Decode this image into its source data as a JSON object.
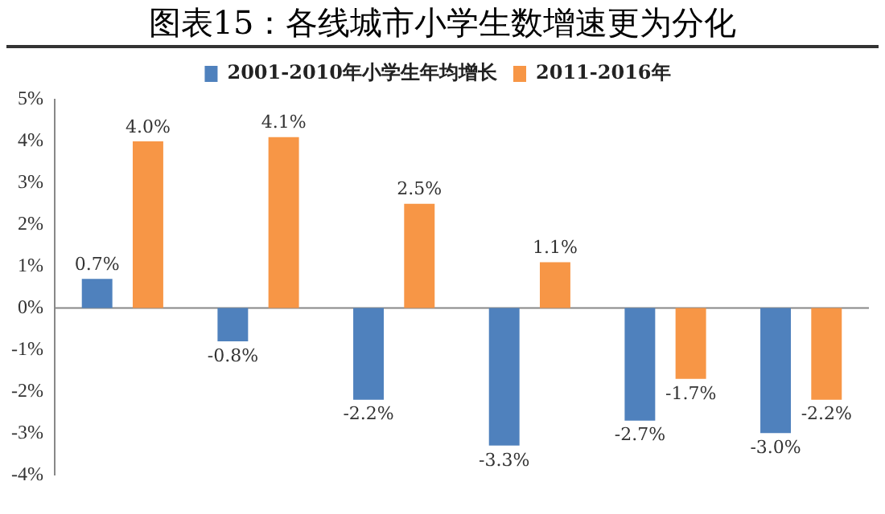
{
  "chart_data": {
    "type": "bar",
    "title": "图表15：各线城市小学生数增速更为分化",
    "categories": [
      null,
      null,
      null,
      null,
      null,
      null
    ],
    "series": [
      {
        "name": "2001-2010年小学生年均增长",
        "color": "#4f81bd",
        "values": [
          0.7,
          -0.8,
          -2.2,
          -3.3,
          -2.7,
          -3.0
        ],
        "value_labels": [
          "0.7%",
          "-0.8%",
          "-2.2%",
          "-3.3%",
          "-2.7%",
          "-3.0%"
        ]
      },
      {
        "name": "2011-2016年",
        "color": "#f79646",
        "values": [
          4.0,
          4.1,
          2.5,
          1.1,
          -1.7,
          -2.2
        ],
        "value_labels": [
          "4.0%",
          "4.1%",
          "2.5%",
          "1.1%",
          "-1.7%",
          "-2.2%"
        ]
      }
    ],
    "ylim": [
      -4,
      5
    ],
    "yticks": [
      {
        "value": 5,
        "label": "5%"
      },
      {
        "value": 4,
        "label": "4%"
      },
      {
        "value": 3,
        "label": "3%"
      },
      {
        "value": 2,
        "label": "2%"
      },
      {
        "value": 1,
        "label": "1%"
      },
      {
        "value": 0,
        "label": "0%"
      },
      {
        "value": -1,
        "label": "-1%"
      },
      {
        "value": -2,
        "label": "-2%"
      },
      {
        "value": -3,
        "label": "-3%"
      },
      {
        "value": -4,
        "label": "-4%"
      }
    ],
    "ref_lines": [
      {
        "axis": "y",
        "value": 0,
        "color": "#888888"
      }
    ],
    "grid": false,
    "legend": "top"
  }
}
